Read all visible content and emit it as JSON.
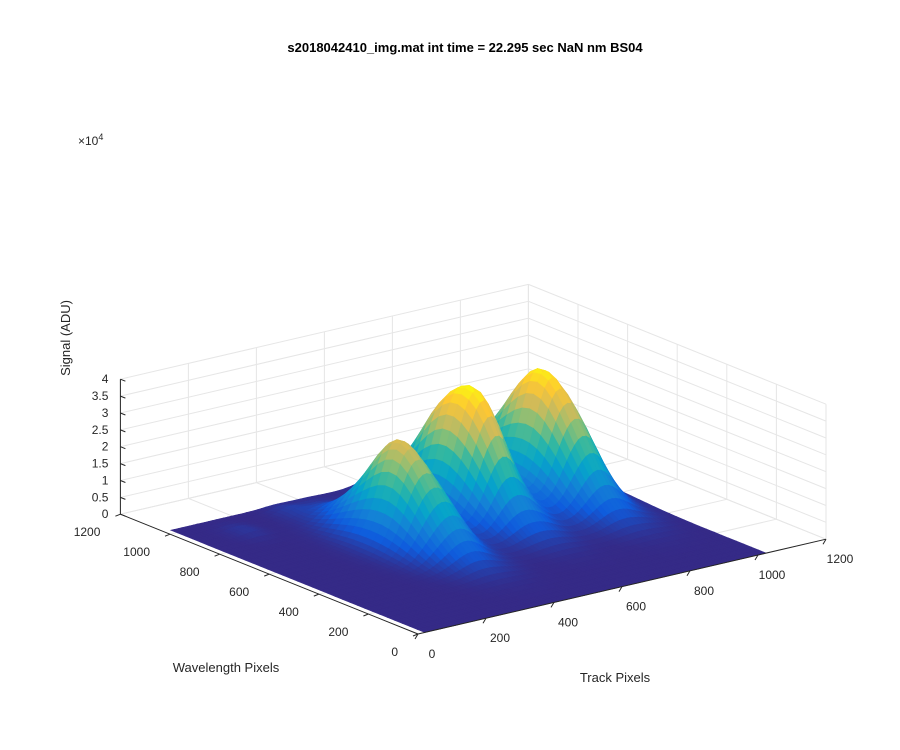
{
  "chart_data": {
    "type": "surface3d",
    "title": "s2018042410_img.mat int time = 22.295 sec  NaN nm BS04",
    "xlabel": "Track Pixels",
    "ylabel": "Wavelength Pixels",
    "zlabel": "Signal (ADU)",
    "xlim": [
      0,
      1200
    ],
    "ylim": [
      0,
      1200
    ],
    "zlim": [
      0,
      40000
    ],
    "xticks": [
      "0",
      "200",
      "400",
      "600",
      "800",
      "1000",
      "1200"
    ],
    "yticks": [
      "0",
      "200",
      "400",
      "600",
      "800",
      "1000",
      "1200"
    ],
    "zticks": [
      "0",
      "0.5",
      "1",
      "1.5",
      "2",
      "2.5",
      "3",
      "3.5",
      "4"
    ],
    "z_exponent": "×10",
    "z_exponent_power": "4",
    "grid": true,
    "colormap": "parula",
    "colors": [
      "#352a87",
      "#0f5cdd",
      "#1481d6",
      "#06a4ca",
      "#2eb7a4",
      "#87bf77",
      "#d1bb59",
      "#fec832",
      "#f9fb0e"
    ],
    "data_extent": {
      "x": [
        20,
        1024
      ],
      "y": [
        0,
        1024
      ]
    },
    "peaks": [
      {
        "track_center": 400,
        "track_width": 120,
        "wavelength_center": 600,
        "wavelength_width": 300,
        "peak_signal": 29000
      },
      {
        "track_center": 650,
        "track_width": 120,
        "wavelength_center": 700,
        "wavelength_width": 300,
        "peak_signal": 38000
      },
      {
        "track_center": 880,
        "track_width": 120,
        "wavelength_center": 700,
        "wavelength_width": 320,
        "peak_signal": 37000
      }
    ],
    "background_bumps": [
      {
        "track_center": 150,
        "wavelength_center": 900,
        "peak_signal": 1200
      },
      {
        "track_center": 320,
        "wavelength_center": 950,
        "peak_signal": 1400
      }
    ]
  }
}
